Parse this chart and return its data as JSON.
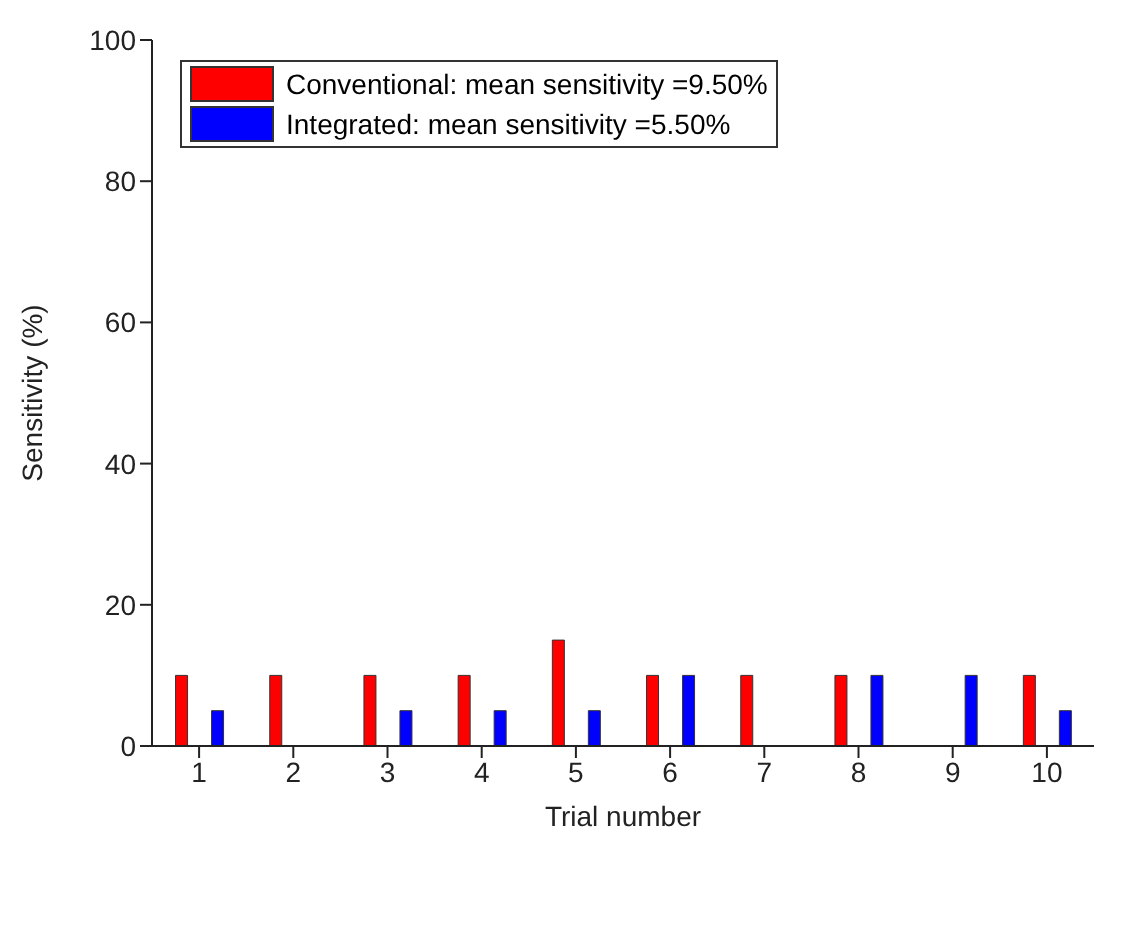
{
  "chart_data": {
    "type": "bar",
    "xlabel": "Trial number",
    "ylabel": "Sensitivity (%)",
    "categories": [
      "1",
      "2",
      "3",
      "4",
      "5",
      "6",
      "7",
      "8",
      "9",
      "10"
    ],
    "series": [
      {
        "name": "Conventional: mean sensitivity =9.50%",
        "color": "#ff0000",
        "values": [
          10,
          10,
          10,
          10,
          15,
          10,
          10,
          10,
          0,
          10
        ]
      },
      {
        "name": "Integrated: mean sensitivity =5.50%",
        "color": "#0000ff",
        "values": [
          5,
          0,
          5,
          5,
          5,
          10,
          0,
          10,
          10,
          5
        ]
      }
    ],
    "ylim": [
      0,
      100
    ],
    "yticks": [
      0,
      20,
      40,
      60,
      80,
      100
    ],
    "grid": false,
    "legend": "top left"
  }
}
